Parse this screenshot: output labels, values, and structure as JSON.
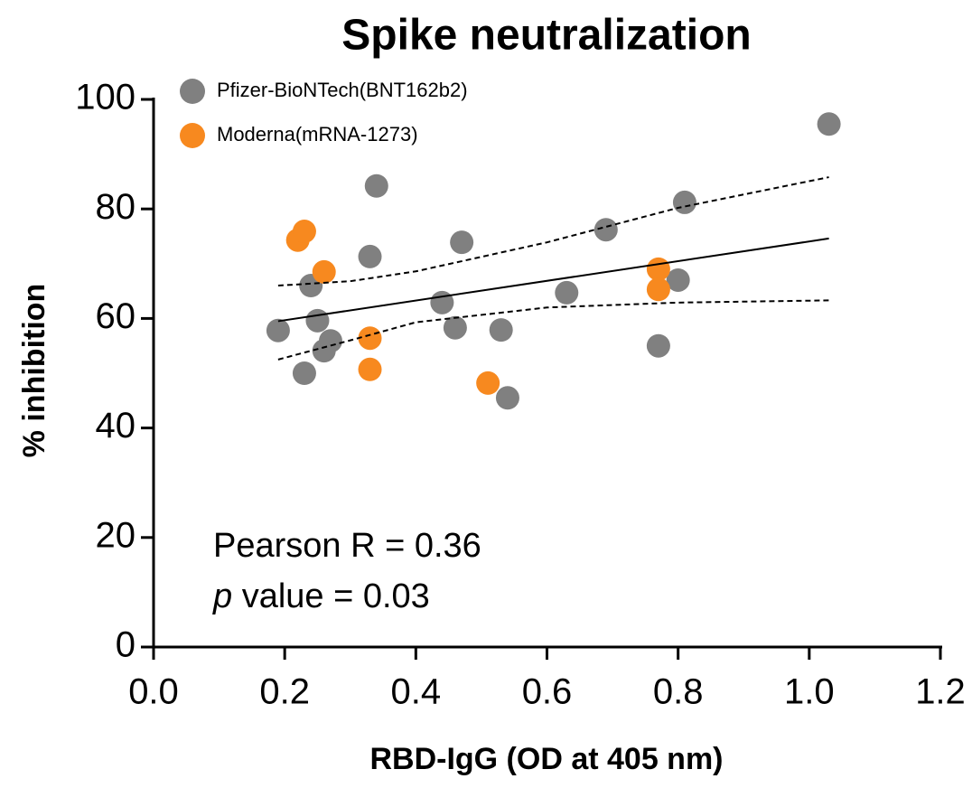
{
  "chart_data": {
    "type": "scatter",
    "title": "Spike neutralization",
    "x_label": "RBD-IgG (OD at 405 nm)",
    "y_label": "% inhibition",
    "xlim": [
      0,
      1.2
    ],
    "ylim": [
      0,
      100
    ],
    "xticks": [
      {
        "value": 0,
        "label": "0.0"
      },
      0.2,
      0.4,
      0.6,
      0.8,
      {
        "value": 1,
        "label": "1.0"
      },
      1.2
    ],
    "yticks": [
      0,
      20,
      40,
      60,
      80,
      100
    ],
    "legend": "top-left",
    "series": [
      {
        "name": "Pfizer-BioNTech(BNT162b2)",
        "color": "#808080",
        "x": [
          0.19,
          0.24,
          0.25,
          0.23,
          0.26,
          0.27,
          0.33,
          0.34,
          0.44,
          0.46,
          0.47,
          0.53,
          0.54,
          0.63,
          0.69,
          0.77,
          0.8,
          0.81,
          1.03
        ],
        "values": [
          57.8,
          66.0,
          59.6,
          50.0,
          54.1,
          55.9,
          71.3,
          84.2,
          62.9,
          58.3,
          73.9,
          57.9,
          45.5,
          64.7,
          76.2,
          55.0,
          67.0,
          81.2,
          95.5
        ]
      },
      {
        "name": "Moderna(mRNA-1273)",
        "color": "#f7891f",
        "x": [
          0.22,
          0.23,
          0.26,
          0.33,
          0.33,
          0.51,
          0.77,
          0.77
        ],
        "values": [
          74.3,
          75.9,
          68.5,
          56.4,
          50.7,
          48.2,
          69.0,
          65.3
        ]
      }
    ],
    "fit": {
      "x": [
        0.19,
        1.03
      ],
      "values": [
        59.5,
        74.6
      ]
    },
    "band_upper": {
      "x": [
        0.19,
        0.3,
        0.4,
        0.6,
        0.8,
        1.03
      ],
      "values": [
        66.0,
        66.8,
        68.6,
        73.9,
        80.2,
        85.8
      ]
    },
    "band_lower": {
      "x": [
        0.19,
        0.3,
        0.4,
        0.6,
        0.8,
        1.03
      ],
      "values": [
        52.5,
        56.0,
        59.3,
        62.0,
        62.9,
        63.3
      ]
    },
    "annotations": [
      "Pearson R = 0.36",
      {
        "italic": "p",
        "text": " value = 0.03"
      }
    ]
  }
}
